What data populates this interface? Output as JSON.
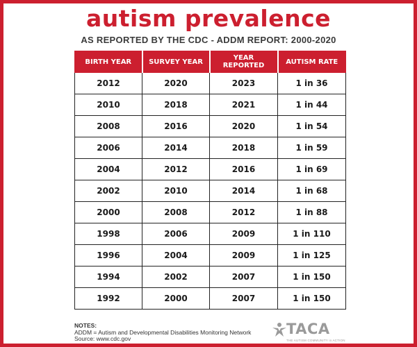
{
  "header": {
    "title": "autism prevalence",
    "subtitle": "AS REPORTED BY THE CDC - ADDM REPORT: 2000-2020"
  },
  "table": {
    "columns": [
      "BIRTH YEAR",
      "SURVEY YEAR",
      "YEAR REPORTED",
      "AUTISM RATE"
    ],
    "rows": [
      [
        "2012",
        "2020",
        "2023",
        "1 in 36"
      ],
      [
        "2010",
        "2018",
        "2021",
        "1 in 44"
      ],
      [
        "2008",
        "2016",
        "2020",
        "1 in 54"
      ],
      [
        "2006",
        "2014",
        "2018",
        "1 in 59"
      ],
      [
        "2004",
        "2012",
        "2016",
        "1 in 69"
      ],
      [
        "2002",
        "2010",
        "2014",
        "1 in 68"
      ],
      [
        "2000",
        "2008",
        "2012",
        "1 in 88"
      ],
      [
        "1998",
        "2006",
        "2009",
        "1 in 110"
      ],
      [
        "1996",
        "2004",
        "2009",
        "1 in 125"
      ],
      [
        "1994",
        "2002",
        "2007",
        "1 in 150"
      ],
      [
        "1992",
        "2000",
        "2007",
        "1 in 150"
      ]
    ]
  },
  "notes": {
    "heading": "NOTES:",
    "line1": "ADDM = Autism and Developmental Disabilities Monitoring Network",
    "line2": "Source: www.cdc.gov"
  },
  "logo": {
    "name": "TACA",
    "tagline": "THE AUTISM COMMUNITY in ACTION",
    "icon": "person-star-icon"
  },
  "colors": {
    "accent": "#cc1f2f",
    "text": "#1a1a1a",
    "logo": "#9a9a9a"
  }
}
